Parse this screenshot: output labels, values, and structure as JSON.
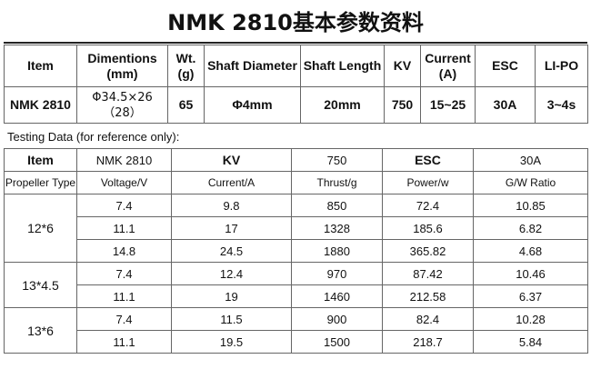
{
  "title": "NMK 2810基本参数资料",
  "spec": {
    "headers": {
      "item": "Item",
      "dim_line1": "Dimentions",
      "dim_line2": "(mm)",
      "wt_line1": "Wt.",
      "wt_line2": "(g)",
      "shaft_diameter": "Shaft Diameter",
      "shaft_length": "Shaft Length",
      "kv": "KV",
      "current_line1": "Current",
      "current_line2": "(A)",
      "esc": "ESC",
      "lipo": "LI-PO"
    },
    "values": {
      "item": "NMK 2810",
      "dim_line1": "Φ34.5×26",
      "dim_line2": "（28）",
      "wt": "65",
      "shaft_diameter": "Φ4mm",
      "shaft_length": "20mm",
      "kv": "750",
      "current": "15~25",
      "esc": "30A",
      "lipo": "3~4s"
    }
  },
  "testing_note": "Testing Data (for reference only):",
  "test": {
    "row1": {
      "item_label": "Item",
      "item_value": "NMK 2810",
      "kv_label": "KV",
      "kv_value": "750",
      "esc_label": "ESC",
      "esc_value": "30A"
    },
    "columns": [
      "Propeller Type",
      "Voltage/V",
      "Current/A",
      "Thrust/g",
      "Power/w",
      "G/W Ratio"
    ],
    "groups": [
      {
        "propeller": "12*6",
        "rows": [
          [
            "7.4",
            "9.8",
            "850",
            "72.4",
            "10.85"
          ],
          [
            "11.1",
            "17",
            "1328",
            "185.6",
            "6.82"
          ],
          [
            "14.8",
            "24.5",
            "1880",
            "365.82",
            "4.68"
          ]
        ]
      },
      {
        "propeller": "13*4.5",
        "rows": [
          [
            "7.4",
            "12.4",
            "970",
            "87.42",
            "10.46"
          ],
          [
            "11.1",
            "19",
            "1460",
            "212.58",
            "6.37"
          ]
        ]
      },
      {
        "propeller": "13*6",
        "rows": [
          [
            "7.4",
            "11.5",
            "900",
            "82.4",
            "10.28"
          ],
          [
            "11.1",
            "19.5",
            "1500",
            "218.7",
            "5.84"
          ]
        ]
      }
    ]
  }
}
